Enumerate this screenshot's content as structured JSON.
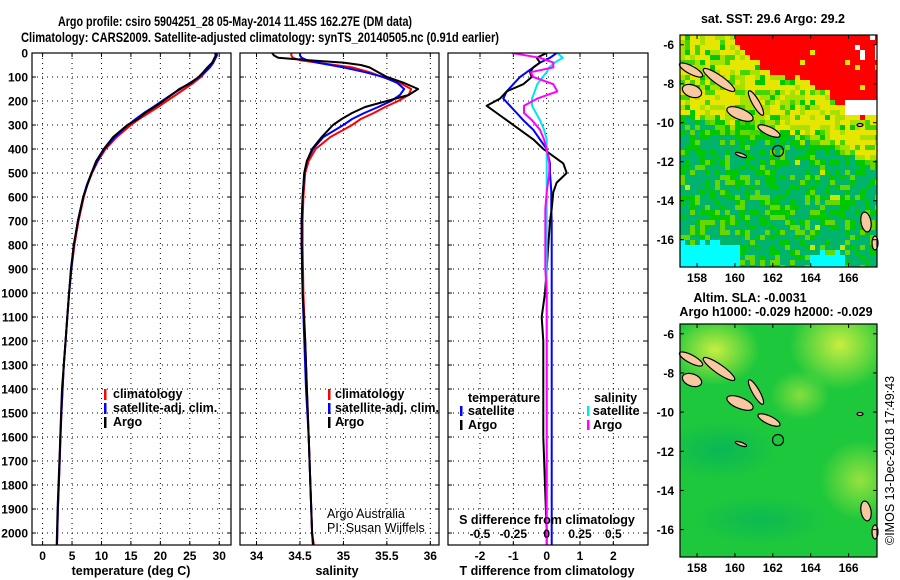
{
  "header": {
    "title_line1": "Argo profile: csiro 5904251_28 05-May-2014 11.45S 162.27E (DM data)",
    "title_line2": "Climatology: CARS2009. Satellite-adjusted climatology: synTS_20140505.nc (0.91d earlier)"
  },
  "credit": {
    "line1": "Argo Australia",
    "line2": "PI: Susan Wijffels",
    "copyright": "©IMOS 13-Dec-2018 17:49:43"
  },
  "colors": {
    "climatology": "#ff0000",
    "satellite": "#0000ff",
    "argo": "#000000",
    "salinity_satellite": "#00e5ee",
    "salinity_argo": "#ff00ff"
  },
  "chart_data": [
    {
      "type": "line",
      "title": "",
      "xlabel": "temperature (deg C)",
      "ylabel": "",
      "xlim": [
        -1.8,
        32
      ],
      "ylim": [
        2050,
        0
      ],
      "xticks": [
        0,
        5,
        10,
        15,
        20,
        25,
        30
      ],
      "yticks": [
        0,
        100,
        200,
        300,
        400,
        500,
        600,
        700,
        800,
        900,
        1000,
        1100,
        1200,
        1300,
        1400,
        1500,
        1600,
        1700,
        1800,
        1900,
        2000
      ],
      "grid": true,
      "legend_position": "bottom-center",
      "depth": [
        0,
        10,
        20,
        40,
        60,
        80,
        100,
        125,
        150,
        175,
        200,
        225,
        250,
        275,
        300,
        350,
        400,
        450,
        500,
        550,
        600,
        700,
        800,
        900,
        1000,
        1100,
        1200,
        1300,
        1400,
        1500,
        1600,
        1700,
        1800,
        1900,
        2000,
        2050
      ],
      "series": [
        {
          "name": "climatology",
          "color_key": "climatology",
          "values": [
            29.4,
            29.5,
            29.3,
            29.0,
            28.4,
            27.6,
            26.9,
            25.6,
            24.1,
            22.6,
            21.1,
            19.6,
            18.0,
            16.4,
            15.0,
            12.6,
            10.7,
            9.4,
            8.4,
            7.6,
            7.0,
            6.1,
            5.4,
            4.9,
            4.5,
            4.2,
            3.9,
            3.6,
            3.4,
            3.2,
            3.05,
            2.9,
            2.75,
            2.6,
            2.5,
            2.45
          ]
        },
        {
          "name": "satellite-adj. clim.",
          "color_key": "satellite",
          "values": [
            29.6,
            29.6,
            29.4,
            29.0,
            28.4,
            27.6,
            26.6,
            25.0,
            23.4,
            21.8,
            20.3,
            18.8,
            17.2,
            15.8,
            14.5,
            12.3,
            10.5,
            9.3,
            8.3,
            7.5,
            6.9,
            6.0,
            5.3,
            4.9,
            4.5,
            4.2,
            3.9,
            3.6,
            3.4,
            3.2,
            3.0,
            2.9,
            2.75,
            2.6,
            2.5,
            2.45
          ]
        },
        {
          "name": "Argo",
          "color_key": "argo",
          "values": [
            29.3,
            29.4,
            29.2,
            28.8,
            28.0,
            27.3,
            26.5,
            25.2,
            23.2,
            21.9,
            20.5,
            19.0,
            17.4,
            16.2,
            14.4,
            12.0,
            10.4,
            9.1,
            8.3,
            7.6,
            6.9,
            6.0,
            5.3,
            4.8,
            4.5,
            4.2,
            3.9,
            3.6,
            3.3,
            3.15,
            3.0,
            2.85,
            2.7,
            2.55,
            2.45,
            2.4
          ]
        }
      ]
    },
    {
      "type": "line",
      "title": "",
      "xlabel": "salinity",
      "ylabel": "",
      "xlim": [
        33.81,
        36.1
      ],
      "ylim": [
        2050,
        0
      ],
      "xticks": [
        34,
        34.5,
        35,
        35.5,
        36
      ],
      "grid": true,
      "legend_position": "bottom-center",
      "depth": [
        0,
        10,
        20,
        30,
        40,
        50,
        60,
        80,
        100,
        125,
        150,
        175,
        200,
        225,
        250,
        275,
        300,
        350,
        400,
        450,
        500,
        600,
        700,
        800,
        1000,
        1200,
        1400,
        1600,
        1800,
        2000,
        2050
      ],
      "series": [
        {
          "name": "climatology",
          "color_key": "climatology",
          "values": [
            34.4,
            34.4,
            34.42,
            34.5,
            34.7,
            34.9,
            35.1,
            35.3,
            35.45,
            35.65,
            35.78,
            35.75,
            35.63,
            35.48,
            35.35,
            35.2,
            35.1,
            34.85,
            34.68,
            34.6,
            34.56,
            34.54,
            34.53,
            34.53,
            34.54,
            34.56,
            34.58,
            34.6,
            34.62,
            34.64,
            34.66
          ]
        },
        {
          "name": "satellite-adj. clim.",
          "color_key": "satellite",
          "values": [
            34.5,
            34.5,
            34.52,
            34.58,
            34.7,
            34.85,
            35.0,
            35.25,
            35.46,
            35.62,
            35.7,
            35.65,
            35.55,
            35.4,
            35.24,
            35.1,
            35.0,
            34.77,
            34.65,
            34.58,
            34.55,
            34.53,
            34.52,
            34.52,
            34.53,
            34.55,
            34.57,
            34.6,
            34.62,
            34.64,
            34.65
          ]
        },
        {
          "name": "Argo",
          "color_key": "argo",
          "values": [
            34.18,
            34.2,
            34.25,
            34.6,
            35.0,
            35.2,
            35.3,
            35.4,
            35.5,
            35.7,
            35.86,
            35.75,
            35.5,
            35.25,
            35.1,
            34.98,
            34.88,
            34.75,
            34.64,
            34.58,
            34.55,
            34.53,
            34.52,
            34.52,
            34.53,
            34.56,
            34.58,
            34.6,
            34.62,
            34.64,
            34.65
          ]
        }
      ]
    },
    {
      "type": "line",
      "title": "",
      "xlabel": "T difference from climatology",
      "x2label": "S difference from climatology",
      "ylabel": "",
      "xlim": [
        -2.96,
        3.04
      ],
      "x2_scale_per_x_unit": 0.25,
      "ylim": [
        2050,
        0
      ],
      "xticks": [
        -2,
        -1,
        0,
        1,
        2
      ],
      "x2ticks": [
        -0.5,
        -0.25,
        0,
        0.25,
        0.5
      ],
      "x2tick_labels": [
        "-0.5",
        "-0.25",
        "0",
        "0.25",
        "0.5"
      ],
      "grid": true,
      "legend_groups": [
        "temperature",
        "salinity"
      ],
      "depth": [
        0,
        20,
        40,
        60,
        80,
        100,
        130,
        160,
        190,
        220,
        250,
        280,
        320,
        360,
        400,
        430,
        460,
        500,
        540,
        580,
        650,
        700,
        800,
        900,
        1000,
        1100,
        1200,
        1400,
        1600,
        1800,
        2000,
        2050
      ],
      "series": [
        {
          "name": "temperature satellite",
          "group": "temperature",
          "label": "satellite",
          "axis": "T",
          "color_key": "satellite",
          "values": [
            0.3,
            0.1,
            -0.2,
            -0.4,
            -0.6,
            -0.8,
            -1.0,
            -1.2,
            -1.3,
            -1.1,
            -0.9,
            -0.7,
            -0.4,
            -0.2,
            0,
            0.05,
            0.1,
            0.1,
            0.12,
            0.14,
            0.14,
            0.15,
            0.15,
            0.15,
            0.15,
            0.15,
            0.15,
            0.15,
            0.15,
            0.15,
            0.15,
            0.15
          ]
        },
        {
          "name": "temperature Argo",
          "group": "temperature",
          "label": "Argo",
          "axis": "T",
          "color_key": "argo",
          "values": [
            0,
            -0.3,
            -0.2,
            -0.4,
            -0.5,
            -0.45,
            -0.7,
            -1.2,
            -1.4,
            -1.8,
            -1.5,
            -1.2,
            -0.8,
            -0.4,
            -0.1,
            0.2,
            0.5,
            0.6,
            0.3,
            0.2,
            0.15,
            0.1,
            0.05,
            0,
            -0.05,
            -0.15,
            -0.1,
            -0.1,
            -0.1,
            -0.05,
            0,
            0
          ]
        },
        {
          "name": "salinity satellite",
          "group": "salinity",
          "label": "satellite",
          "axis": "S",
          "color_key": "salinity_satellite",
          "values": [
            0.08,
            0.12,
            0.06,
            0.02,
            0,
            -0.03,
            -0.07,
            -0.09,
            -0.11,
            -0.11,
            -0.08,
            -0.05,
            -0.02,
            0,
            0,
            0,
            0,
            0,
            0,
            0,
            0,
            0,
            0,
            0,
            0,
            0,
            0,
            0,
            0,
            0,
            0,
            0
          ]
        },
        {
          "name": "salinity Argo",
          "group": "salinity",
          "label": "Argo",
          "axis": "S",
          "color_key": "salinity_argo",
          "values": [
            -0.26,
            -0.05,
            0.05,
            0.05,
            -0.12,
            -0.1,
            0.05,
            0.08,
            -0.07,
            -0.17,
            -0.17,
            -0.11,
            -0.05,
            -0.02,
            0,
            0.01,
            0.02,
            0.02,
            0.01,
            0,
            -0.01,
            -0.01,
            -0.01,
            -0.01,
            0,
            0,
            0,
            0,
            0,
            0,
            0,
            0
          ]
        }
      ]
    },
    {
      "type": "heatmap",
      "title": "sat. SST: 29.6 Argo: 29.2",
      "xlim": [
        157.1,
        167.5
      ],
      "ylim": [
        -17.4,
        -5.5
      ],
      "xticks": [
        158,
        160,
        162,
        164,
        166
      ],
      "yticks": [
        -6,
        -8,
        -10,
        -12,
        -14,
        -16
      ],
      "marker": {
        "lon": 162.27,
        "lat": -11.45
      }
    },
    {
      "type": "heatmap",
      "title": "Altim. SLA: -0.0031",
      "subtitle": "Argo h1000: -0.029 h2000: -0.029",
      "xlim": [
        157.1,
        167.5
      ],
      "ylim": [
        -17.4,
        -5.5
      ],
      "xticks": [
        158,
        160,
        162,
        164,
        166
      ],
      "yticks": [
        -6,
        -8,
        -10,
        -12,
        -14,
        -16
      ],
      "marker": {
        "lon": 162.27,
        "lat": -11.45
      }
    }
  ],
  "legends": {
    "temp_panel": [
      "climatology",
      "satellite-adj. clim.",
      "Argo"
    ],
    "sal_panel": [
      "climatology",
      "satellite-adj. clim.",
      "Argo"
    ],
    "diff_panel": {
      "temperature_title": "temperature",
      "salinity_title": "salinity",
      "satellite": "satellite",
      "argo": "Argo"
    }
  }
}
